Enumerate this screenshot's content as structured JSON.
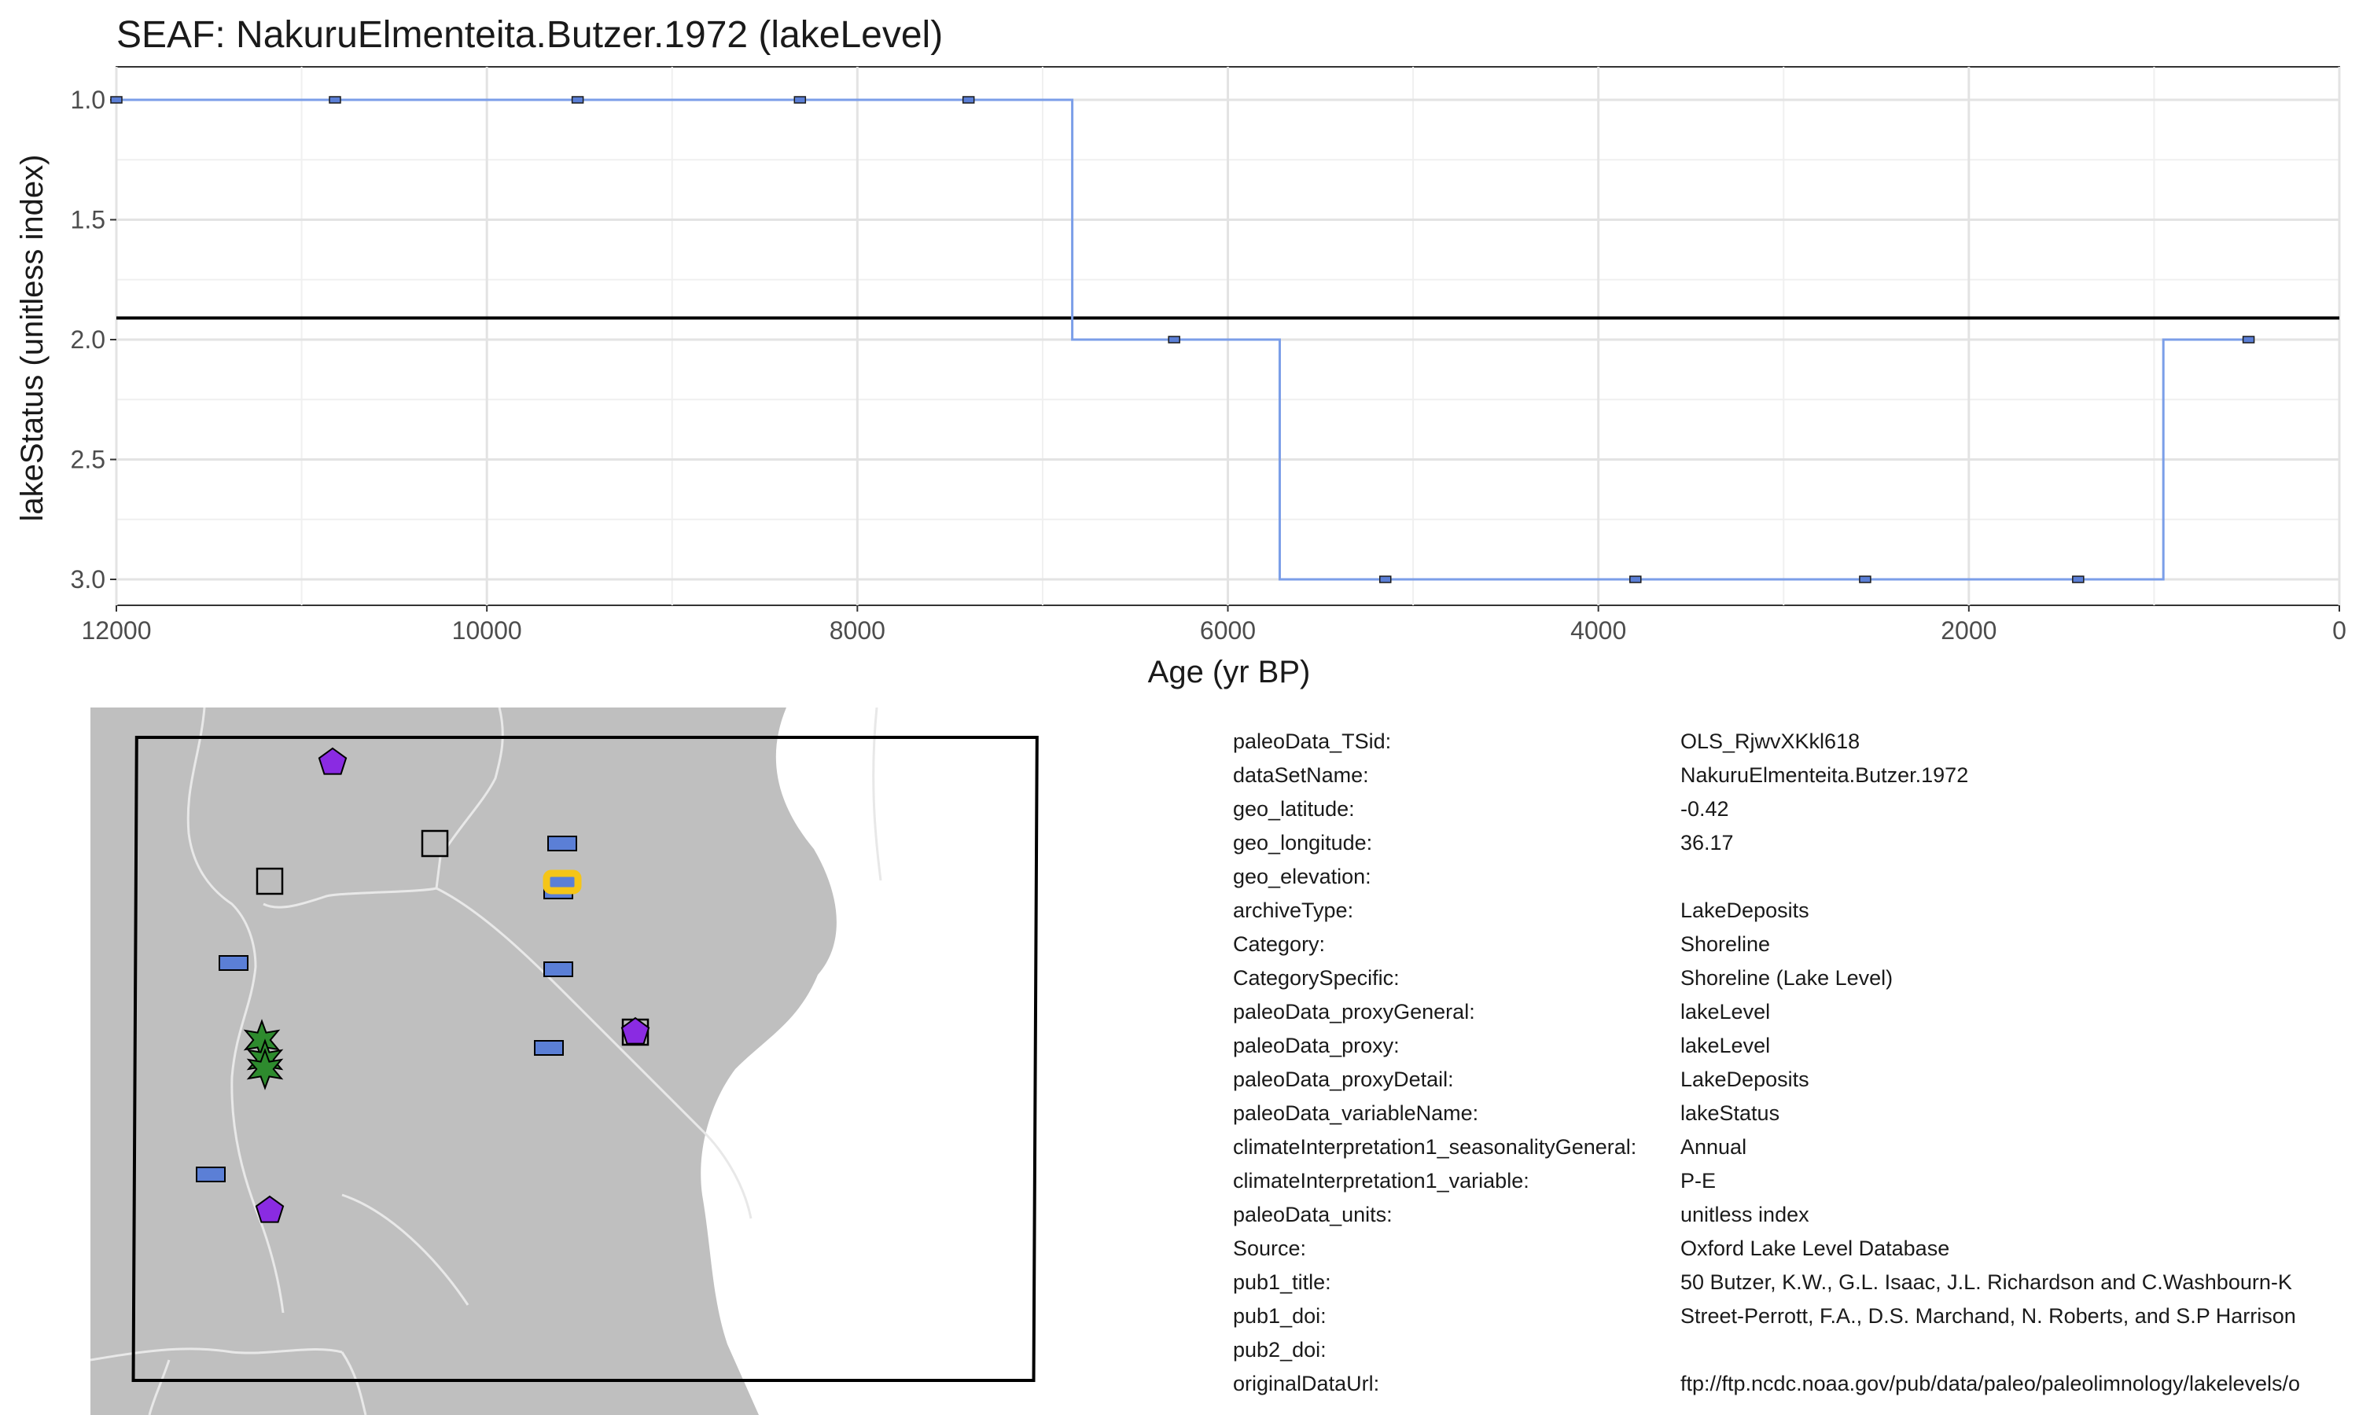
{
  "chart_data": {
    "type": "line",
    "step": true,
    "title": "SEAF: NakuruElmenteita.Butzer.1972 (lakeLevel)",
    "xlabel": "Age (yr BP)",
    "ylabel": "lakeStatus (unitless index)",
    "xlim": [
      12000,
      0
    ],
    "ylim": [
      3.0,
      1.0
    ],
    "x_reversed": true,
    "y_reversed": true,
    "x_ticks": [
      12000,
      10000,
      8000,
      6000,
      4000,
      2000,
      0
    ],
    "x_tick_labels": [
      "12000",
      "10000",
      "8000",
      "6000",
      "4000",
      "2000",
      "0"
    ],
    "y_ticks": [
      1.0,
      1.5,
      2.0,
      2.5,
      3.0
    ],
    "y_tick_labels": [
      "1.0",
      "1.5",
      "2.0",
      "2.5",
      "3.0"
    ],
    "grid": true,
    "reference_line_y": 1.91,
    "series": [
      {
        "line_color": "#7b9ee8",
        "marker_color": "#5b7fd6",
        "x": [
          12000,
          10820,
          9510,
          8310,
          7400,
          6290,
          5150,
          3800,
          2560,
          1410,
          490
        ],
        "y": [
          1.0,
          1.0,
          1.0,
          1.0,
          1.0,
          2.0,
          3.0,
          3.0,
          3.0,
          3.0,
          2.0
        ],
        "step_path_x": [
          12000,
          6840,
          6840,
          5720,
          5720,
          950,
          950,
          490
        ],
        "step_path_y": [
          1.0,
          1.0,
          2.0,
          2.0,
          3.0,
          3.0,
          2.0,
          2.0
        ]
      }
    ]
  },
  "map": {
    "land_color": "#bfbfbf",
    "water_color": "#ffffff",
    "border_color": "#e6e6e6",
    "markers": [
      {
        "shape": "pentagon",
        "color": "#8a2be2",
        "icon": "pentagon-marker-icon"
      },
      {
        "shape": "square",
        "color": "#bdbdbd",
        "icon": "square-marker-icon"
      },
      {
        "shape": "square",
        "color": "#bdbdbd",
        "icon": "square-marker-icon"
      },
      {
        "shape": "rect",
        "color": "#5b7fd6",
        "icon": "rect-marker-icon"
      },
      {
        "shape": "rect",
        "color": "#5b7fd6",
        "icon": "rect-marker-icon"
      },
      {
        "shape": "rect",
        "color": "#5b7fd6",
        "icon": "rect-marker-icon"
      },
      {
        "shape": "rect",
        "color": "#5b7fd6",
        "icon": "rect-marker-icon"
      },
      {
        "shape": "rect",
        "color": "#5b7fd6",
        "icon": "rect-marker-icon"
      },
      {
        "shape": "square",
        "color": "#bdbdbd",
        "icon": "square-marker-icon"
      },
      {
        "shape": "pentagon",
        "color": "#8a2be2",
        "icon": "pentagon-marker-icon"
      },
      {
        "shape": "star",
        "color": "#2e8b2e",
        "icon": "star-marker-icon"
      },
      {
        "shape": "star",
        "color": "#2e8b2e",
        "icon": "star-marker-icon"
      },
      {
        "shape": "star",
        "color": "#2e8b2e",
        "icon": "star-marker-icon"
      },
      {
        "shape": "rect",
        "color": "#5b7fd6",
        "icon": "rect-marker-icon"
      },
      {
        "shape": "pentagon",
        "color": "#8a2be2",
        "icon": "pentagon-marker-icon"
      },
      {
        "shape": "rect",
        "color": "#5b7fd6",
        "icon": "rect-marker-icon"
      }
    ],
    "highlight": {
      "shape": "rect",
      "color": "#5b7fd6",
      "outline_color": "#f5c518",
      "icon": "highlighted-site-icon"
    }
  },
  "metadata": [
    {
      "key": "paleoData_TSid:",
      "value": "OLS_RjwvXKkl618"
    },
    {
      "key": "dataSetName:",
      "value": "NakuruElmenteita.Butzer.1972"
    },
    {
      "key": "geo_latitude:",
      "value": "-0.42"
    },
    {
      "key": "geo_longitude:",
      "value": "36.17"
    },
    {
      "key": "geo_elevation:",
      "value": ""
    },
    {
      "key": "archiveType:",
      "value": "LakeDeposits"
    },
    {
      "key": "Category:",
      "value": "Shoreline"
    },
    {
      "key": "CategorySpecific:",
      "value": "Shoreline (Lake Level)"
    },
    {
      "key": "paleoData_proxyGeneral:",
      "value": "lakeLevel"
    },
    {
      "key": "paleoData_proxy:",
      "value": "lakeLevel"
    },
    {
      "key": "paleoData_proxyDetail:",
      "value": "LakeDeposits"
    },
    {
      "key": "paleoData_variableName:",
      "value": "lakeStatus"
    },
    {
      "key": "climateInterpretation1_seasonalityGeneral:",
      "value": "Annual"
    },
    {
      "key": "climateInterpretation1_variable:",
      "value": "P-E"
    },
    {
      "key": "paleoData_units:",
      "value": "unitless index"
    },
    {
      "key": "Source:",
      "value": "Oxford Lake Level Database"
    },
    {
      "key": "pub1_title:",
      "value": "50  Butzer, K.W., G.L. Isaac, J.L. Richardson and C.Washbourn-K"
    },
    {
      "key": "pub1_doi:",
      "value": "Street-Perrott, F.A., D.S. Marchand, N. Roberts, and S.P Harrison"
    },
    {
      "key": "pub2_doi:",
      "value": ""
    },
    {
      "key": "originalDataUrl:",
      "value": "ftp://ftp.ncdc.noaa.gov/pub/data/paleo/paleolimnology/lakelevels/o"
    }
  ]
}
